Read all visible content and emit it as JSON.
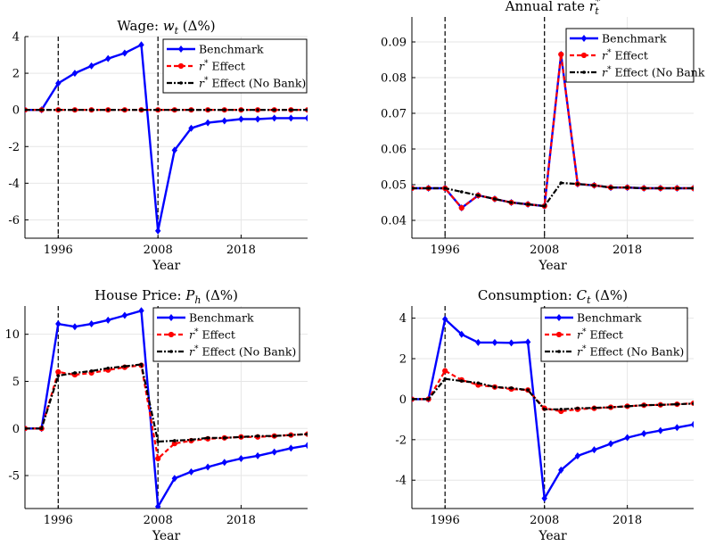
{
  "colors": {
    "benchmark": "#0000ff",
    "rstar_effect": "#ff0000",
    "no_bank": "#000000",
    "grid": "#e6e6e6",
    "vline": "#000000"
  },
  "legend": {
    "benchmark": "Benchmark",
    "effect_prefix": "r",
    "effect_sup": "*",
    "effect_suffix": " Effect",
    "nobank_suffix_full": " Effect (No Bank)",
    "nobank_suffix_trunc": " Effect (No Bank"
  },
  "chart_data": [
    {
      "id": "wage",
      "type": "line",
      "title_pre": "Wage: ",
      "title_var": "w",
      "title_sub": "t",
      "title_sup": "",
      "title_post": " (Δ%)",
      "xlabel": "Year",
      "xticks": [
        1996,
        2008,
        2018
      ],
      "yticks": [
        4,
        2,
        0,
        -2,
        -4,
        -6
      ],
      "ylim": [
        -7,
        4
      ],
      "vlines": [
        1996,
        2008
      ],
      "x": [
        1992,
        1994,
        1996,
        1998,
        2000,
        2002,
        2004,
        2006,
        2008,
        2010,
        2012,
        2014,
        2016,
        2018,
        2020,
        2022,
        2024,
        2026
      ],
      "series": [
        {
          "name": "Benchmark",
          "values": [
            0,
            0,
            1.45,
            2.0,
            2.4,
            2.8,
            3.1,
            3.55,
            -6.6,
            -2.2,
            -1.0,
            -0.7,
            -0.6,
            -0.5,
            -0.5,
            -0.45,
            -0.45,
            -0.45
          ]
        },
        {
          "name": "r* Effect",
          "values": [
            0,
            0,
            0,
            0,
            0,
            0,
            0,
            0,
            0,
            0,
            0,
            0,
            0,
            0,
            0,
            0,
            0,
            0
          ]
        },
        {
          "name": "r* Effect (No Bank)",
          "values": [
            0,
            0,
            0,
            0,
            0,
            0,
            0,
            0,
            0,
            0,
            0,
            0,
            0,
            0,
            0,
            0,
            0,
            0
          ]
        }
      ]
    },
    {
      "id": "annual-rate",
      "type": "line",
      "title_pre": "Annual rate ",
      "title_var": "r",
      "title_sub": "t",
      "title_sup": "*",
      "title_post": "",
      "xlabel": "Year",
      "xticks": [
        1996,
        2008,
        2018
      ],
      "yticks": [
        0.09,
        0.08,
        0.07,
        0.06,
        0.05,
        0.04
      ],
      "ylim": [
        0.035,
        0.097
      ],
      "vlines": [
        1996,
        2008
      ],
      "x": [
        1992,
        1994,
        1996,
        1998,
        2000,
        2002,
        2004,
        2006,
        2008,
        2010,
        2012,
        2014,
        2016,
        2018,
        2020,
        2022,
        2024,
        2026
      ],
      "series": [
        {
          "name": "Benchmark",
          "values": [
            0.049,
            0.049,
            0.049,
            0.0435,
            0.047,
            0.046,
            0.045,
            0.0445,
            0.044,
            0.0865,
            0.0502,
            0.0498,
            0.0492,
            0.0492,
            0.049,
            0.049,
            0.049,
            0.049
          ]
        },
        {
          "name": "r* Effect",
          "values": [
            0.049,
            0.049,
            0.049,
            0.0435,
            0.047,
            0.046,
            0.045,
            0.0445,
            0.044,
            0.0865,
            0.0502,
            0.0498,
            0.0492,
            0.0492,
            0.049,
            0.049,
            0.049,
            0.049
          ]
        },
        {
          "name": "r* Effect (No Bank)",
          "values": [
            0.049,
            0.049,
            0.049,
            0.048,
            0.047,
            0.046,
            0.045,
            0.0445,
            0.044,
            0.0505,
            0.0502,
            0.0498,
            0.0492,
            0.0492,
            0.049,
            0.049,
            0.049,
            0.049
          ]
        }
      ]
    },
    {
      "id": "house-price",
      "type": "line",
      "title_pre": "House Price: ",
      "title_var": "P",
      "title_sub": "h",
      "title_sup": "",
      "title_post": " (Δ%)",
      "xlabel": "Year",
      "xticks": [
        1996,
        2008,
        2018
      ],
      "yticks": [
        10,
        5,
        0,
        -5
      ],
      "ylim": [
        -8.5,
        13
      ],
      "vlines": [
        1996,
        2008
      ],
      "x": [
        1992,
        1994,
        1996,
        1998,
        2000,
        2002,
        2004,
        2006,
        2008,
        2010,
        2012,
        2014,
        2016,
        2018,
        2020,
        2022,
        2024,
        2026
      ],
      "series": [
        {
          "name": "Benchmark",
          "values": [
            0,
            0,
            11.1,
            10.8,
            11.1,
            11.5,
            12.0,
            12.5,
            -8.3,
            -5.3,
            -4.6,
            -4.1,
            -3.6,
            -3.2,
            -2.9,
            -2.5,
            -2.1,
            -1.8
          ]
        },
        {
          "name": "r* Effect",
          "values": [
            0,
            0,
            6.0,
            5.7,
            5.9,
            6.2,
            6.5,
            6.7,
            -3.2,
            -1.6,
            -1.3,
            -1.1,
            -1.0,
            -0.9,
            -0.9,
            -0.8,
            -0.7,
            -0.6
          ]
        },
        {
          "name": "r* Effect (No Bank)",
          "values": [
            0,
            0,
            5.6,
            5.9,
            6.1,
            6.4,
            6.6,
            6.8,
            -1.4,
            -1.3,
            -1.2,
            -1.0,
            -1.0,
            -0.9,
            -0.8,
            -0.8,
            -0.7,
            -0.6
          ]
        }
      ]
    },
    {
      "id": "consumption",
      "type": "line",
      "title_pre": "Consumption: ",
      "title_var": "C",
      "title_sub": "t",
      "title_sup": "",
      "title_post": " (Δ%)",
      "xlabel": "Year",
      "xticks": [
        1996,
        2008,
        2018
      ],
      "yticks": [
        4,
        2,
        0,
        -2,
        -4
      ],
      "ylim": [
        -5.4,
        4.6
      ],
      "vlines": [
        1996,
        2008
      ],
      "x": [
        1992,
        1994,
        1996,
        1998,
        2000,
        2002,
        2004,
        2006,
        2008,
        2010,
        2012,
        2014,
        2016,
        2018,
        2020,
        2022,
        2024,
        2026
      ],
      "series": [
        {
          "name": "Benchmark",
          "values": [
            0,
            0,
            3.95,
            3.2,
            2.8,
            2.8,
            2.78,
            2.82,
            -4.9,
            -3.5,
            -2.8,
            -2.5,
            -2.2,
            -1.9,
            -1.7,
            -1.55,
            -1.4,
            -1.25
          ]
        },
        {
          "name": "r* Effect",
          "values": [
            0,
            0,
            1.4,
            0.95,
            0.7,
            0.6,
            0.5,
            0.45,
            -0.45,
            -0.6,
            -0.5,
            -0.45,
            -0.4,
            -0.35,
            -0.3,
            -0.28,
            -0.25,
            -0.2
          ]
        },
        {
          "name": "r* Effect (No Bank)",
          "values": [
            0,
            0,
            1.0,
            0.9,
            0.8,
            0.6,
            0.55,
            0.45,
            -0.5,
            -0.5,
            -0.45,
            -0.43,
            -0.4,
            -0.35,
            -0.3,
            -0.28,
            -0.25,
            -0.22
          ]
        }
      ]
    }
  ]
}
